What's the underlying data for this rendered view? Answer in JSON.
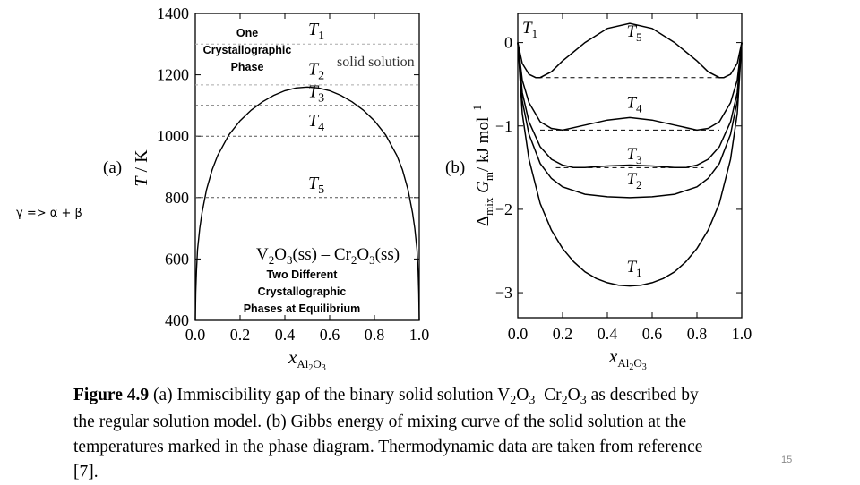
{
  "overlay": {
    "one_phase_lines": [
      "One",
      "Crystallographic",
      "Phase"
    ],
    "two_phase_lines": [
      "Two Different",
      "Crystallographic",
      "Phases at Equilibrium"
    ],
    "gamma_reaction": "γ => α + β"
  },
  "caption": {
    "label": "Figure 4.9",
    "line1_rest": " (a) Immiscibility gap of the binary solid solution V",
    "line2": "the regular solution model. (b) Gibbs energy of mixing curve of the solid solution at the",
    "line3": "temperatures marked in the phase diagram. Thermodynamic data are taken from reference",
    "line4": "[7]."
  },
  "page_number": "15",
  "chart_data": [
    {
      "type": "line",
      "panel_label": "(a)",
      "ylabel_main": "T",
      "ylabel_unit": " / K",
      "xlabel_main": "x",
      "xlabel_sub": "Al",
      "xlabel_sub2": "O",
      "xlim": [
        0,
        1
      ],
      "ylim": [
        400,
        1400
      ],
      "x_ticks": [
        "0.0",
        "0.2",
        "0.4",
        "0.6",
        "0.8",
        "1.0"
      ],
      "y_ticks": [
        "400",
        "600",
        "800",
        "1000",
        "1200",
        "1400"
      ],
      "temperatures": [
        {
          "label": "T",
          "index": "1",
          "y": 1300,
          "line_color": "#aaaaaa"
        },
        {
          "label": "T",
          "index": "2",
          "y": 1167,
          "line_color": "#aaaaaa"
        },
        {
          "label": "T",
          "index": "3",
          "y": 1100,
          "line_color": "#555555"
        },
        {
          "label": "T",
          "index": "4",
          "y": 1000,
          "line_color": "#555555"
        },
        {
          "label": "T",
          "index": "5",
          "y": 800,
          "line_color": "#555555"
        }
      ],
      "region_label": "solid solution",
      "system_label": "V2O3(ss) – Cr2O3(ss)",
      "critical_point": {
        "x": 0.5,
        "y": 1160
      },
      "series": [
        {
          "x": [
            0,
            0.002,
            0.005,
            0.01,
            0.02,
            0.03,
            0.05,
            0.075,
            0.1,
            0.15,
            0.2,
            0.25,
            0.3,
            0.35,
            0.4,
            0.45,
            0.5,
            0.55,
            0.6,
            0.65,
            0.7,
            0.75,
            0.8,
            0.85,
            0.9,
            0.925,
            0.95,
            0.97,
            0.98,
            0.99,
            0.995,
            0.998,
            1
          ],
          "y": [
            400,
            490,
            560,
            630,
            700,
            750,
            825,
            890,
            937,
            1004,
            1050,
            1085,
            1112,
            1133,
            1148,
            1157,
            1160,
            1157,
            1148,
            1133,
            1112,
            1085,
            1050,
            1004,
            937,
            890,
            825,
            750,
            700,
            630,
            560,
            490,
            400
          ]
        }
      ]
    },
    {
      "type": "line",
      "panel_label": "(b)",
      "ylabel_main": "Δ",
      "ylabel_sub": "mix",
      "ylabel_mid": " G",
      "ylabel_sub2": "m",
      "ylabel_unit": "/ kJ mol",
      "ylabel_exp": "−1",
      "xlabel_main": "x",
      "xlabel_sub": "Al",
      "xlabel_sub2": "O",
      "xlim": [
        0,
        1
      ],
      "ylim": [
        -3.3,
        0.35
      ],
      "x_ticks": [
        "0.0",
        "0.2",
        "0.4",
        "0.6",
        "0.8",
        "1.0"
      ],
      "y_ticks": [
        "−3",
        "−2",
        "−1",
        "0"
      ],
      "corner_label": {
        "label": "T",
        "index": "1"
      },
      "tangents": [
        -0.42,
        -1.05,
        -1.5
      ],
      "series": [
        {
          "label": "T",
          "index": "5",
          "label_x": 0.52,
          "label_y": 0.07,
          "x": [
            0,
            0.02,
            0.05,
            0.08,
            0.1,
            0.15,
            0.2,
            0.3,
            0.4,
            0.5,
            0.6,
            0.7,
            0.8,
            0.85,
            0.9,
            0.92,
            0.95,
            0.98,
            1
          ],
          "y": [
            0,
            -0.25,
            -0.38,
            -0.42,
            -0.42,
            -0.35,
            -0.22,
            0.0,
            0.17,
            0.23,
            0.17,
            0.0,
            -0.22,
            -0.35,
            -0.42,
            -0.42,
            -0.38,
            -0.25,
            0
          ]
        },
        {
          "label": "T",
          "index": "4",
          "label_x": 0.52,
          "label_y": -0.78,
          "x": [
            0,
            0.02,
            0.05,
            0.1,
            0.15,
            0.2,
            0.3,
            0.4,
            0.5,
            0.6,
            0.7,
            0.8,
            0.85,
            0.9,
            0.95,
            0.98,
            1
          ],
          "y": [
            0,
            -0.45,
            -0.72,
            -0.95,
            -1.03,
            -1.05,
            -0.99,
            -0.93,
            -0.9,
            -0.93,
            -0.99,
            -1.05,
            -1.03,
            -0.95,
            -0.72,
            -0.45,
            0
          ]
        },
        {
          "label": "T",
          "index": "3",
          "label_x": 0.52,
          "label_y": -1.4,
          "x": [
            0,
            0.02,
            0.05,
            0.1,
            0.15,
            0.2,
            0.25,
            0.3,
            0.4,
            0.5,
            0.6,
            0.7,
            0.75,
            0.8,
            0.85,
            0.9,
            0.95,
            0.98,
            1
          ],
          "y": [
            0,
            -0.6,
            -0.95,
            -1.25,
            -1.4,
            -1.47,
            -1.5,
            -1.5,
            -1.48,
            -1.47,
            -1.48,
            -1.5,
            -1.5,
            -1.47,
            -1.4,
            -1.25,
            -0.95,
            -0.6,
            0
          ]
        },
        {
          "label": "T",
          "index": "2",
          "label_x": 0.52,
          "label_y": -1.7,
          "x": [
            0,
            0.02,
            0.05,
            0.1,
            0.15,
            0.2,
            0.3,
            0.4,
            0.5,
            0.6,
            0.7,
            0.8,
            0.85,
            0.9,
            0.95,
            0.98,
            1
          ],
          "y": [
            0,
            -0.7,
            -1.1,
            -1.45,
            -1.63,
            -1.73,
            -1.82,
            -1.85,
            -1.86,
            -1.85,
            -1.82,
            -1.73,
            -1.63,
            -1.45,
            -1.1,
            -0.7,
            0
          ]
        },
        {
          "label": "T",
          "index": "1",
          "label_x": 0.52,
          "label_y": -2.75,
          "x": [
            0,
            0.02,
            0.05,
            0.1,
            0.15,
            0.2,
            0.25,
            0.3,
            0.35,
            0.4,
            0.45,
            0.5,
            0.55,
            0.6,
            0.65,
            0.7,
            0.75,
            0.8,
            0.85,
            0.9,
            0.95,
            0.98,
            1
          ],
          "y": [
            0,
            -0.85,
            -1.4,
            -1.93,
            -2.25,
            -2.47,
            -2.63,
            -2.75,
            -2.83,
            -2.88,
            -2.91,
            -2.92,
            -2.91,
            -2.88,
            -2.83,
            -2.75,
            -2.63,
            -2.47,
            -2.25,
            -1.93,
            -1.4,
            -0.85,
            0
          ]
        }
      ]
    }
  ]
}
